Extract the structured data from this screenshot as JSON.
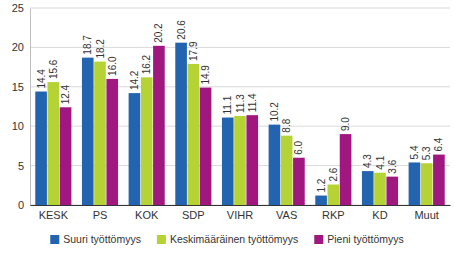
{
  "chart_data": {
    "type": "bar",
    "categories": [
      "KESK",
      "PS",
      "KOK",
      "SDP",
      "VIHR",
      "VAS",
      "RKP",
      "KD",
      "Muut"
    ],
    "series": [
      {
        "name": "Suuri työttömyys",
        "color": "#2264b0",
        "values": [
          14.4,
          18.7,
          14.2,
          20.6,
          11.1,
          10.2,
          1.2,
          4.3,
          5.4
        ],
        "value_labels": [
          "14.4",
          "18.7",
          "14.2",
          "20.6",
          "11.1",
          "10.2",
          "1.2",
          "4.3",
          "5.4"
        ]
      },
      {
        "name": "Keskimääräinen työttömyys",
        "color": "#b5d334",
        "values": [
          15.6,
          18.2,
          16.2,
          17.9,
          11.3,
          8.8,
          2.6,
          4.1,
          5.3
        ],
        "value_labels": [
          "15.6",
          "18.2",
          "16.2",
          "17.9",
          "11.3",
          "8.8",
          "2.6",
          "4.1",
          "5.3"
        ]
      },
      {
        "name": "Pieni työttömyys",
        "color": "#a0187f",
        "values": [
          12.4,
          16.0,
          20.2,
          14.9,
          11.4,
          6.0,
          9.0,
          3.6,
          6.4
        ],
        "value_labels": [
          "12.4",
          "16.0",
          "20.2",
          "14.9",
          "11.4",
          "6.0",
          "9.0",
          "3.6",
          "6.4"
        ]
      }
    ],
    "ylim": [
      0,
      25
    ],
    "yticks": [
      0,
      5,
      10,
      15,
      20,
      25
    ],
    "grid": true,
    "data_labels": true,
    "legend": "bottom"
  }
}
